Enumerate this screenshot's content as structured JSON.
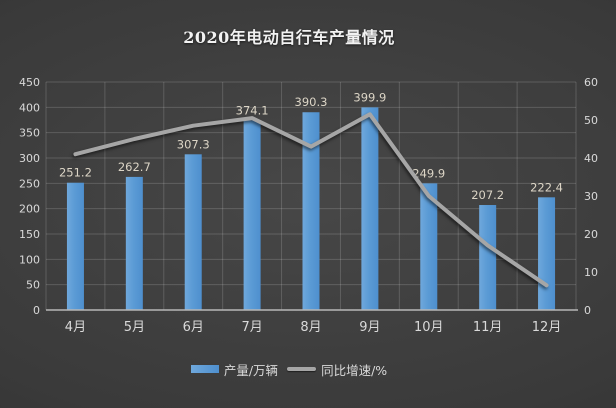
{
  "title": "2020年电动自行车产量情况",
  "colors": {
    "bar": "#5B9BD5",
    "bar_light": "#6FA8DC",
    "bar_dark": "#4E8FCE",
    "line": "#A6A6A6",
    "tick_text": "#D9D9D9",
    "value_text": "#DCD5C6",
    "title_text": "#F2F2F2",
    "background_center": "#474747",
    "background_edge": "#2A2A2A",
    "gridline": "rgba(255,255,255,0.16)",
    "axis_line": "#B7B7B7"
  },
  "chart_data": {
    "type": "bar",
    "title": "2020年电动自行车产量情况",
    "categories": [
      "4月",
      "5月",
      "6月",
      "7月",
      "8月",
      "9月",
      "10月",
      "11月",
      "12月"
    ],
    "series": [
      {
        "name": "产量/万辆",
        "type": "bar",
        "axis": "left",
        "values": [
          251.2,
          262.7,
          307.3,
          374.1,
          390.3,
          399.9,
          249.9,
          207.2,
          222.4
        ],
        "data_labels": true
      },
      {
        "name": "同比增速/%",
        "type": "line",
        "axis": "right",
        "values": [
          41,
          45,
          48.5,
          50.5,
          43,
          51.5,
          30,
          17,
          6.5
        ],
        "values_estimated": true
      }
    ],
    "left_axis": {
      "min": 0,
      "max": 450,
      "step": 50
    },
    "right_axis": {
      "min": 0,
      "max": 60,
      "step": 10
    },
    "grid": true,
    "legend_position": "bottom"
  }
}
